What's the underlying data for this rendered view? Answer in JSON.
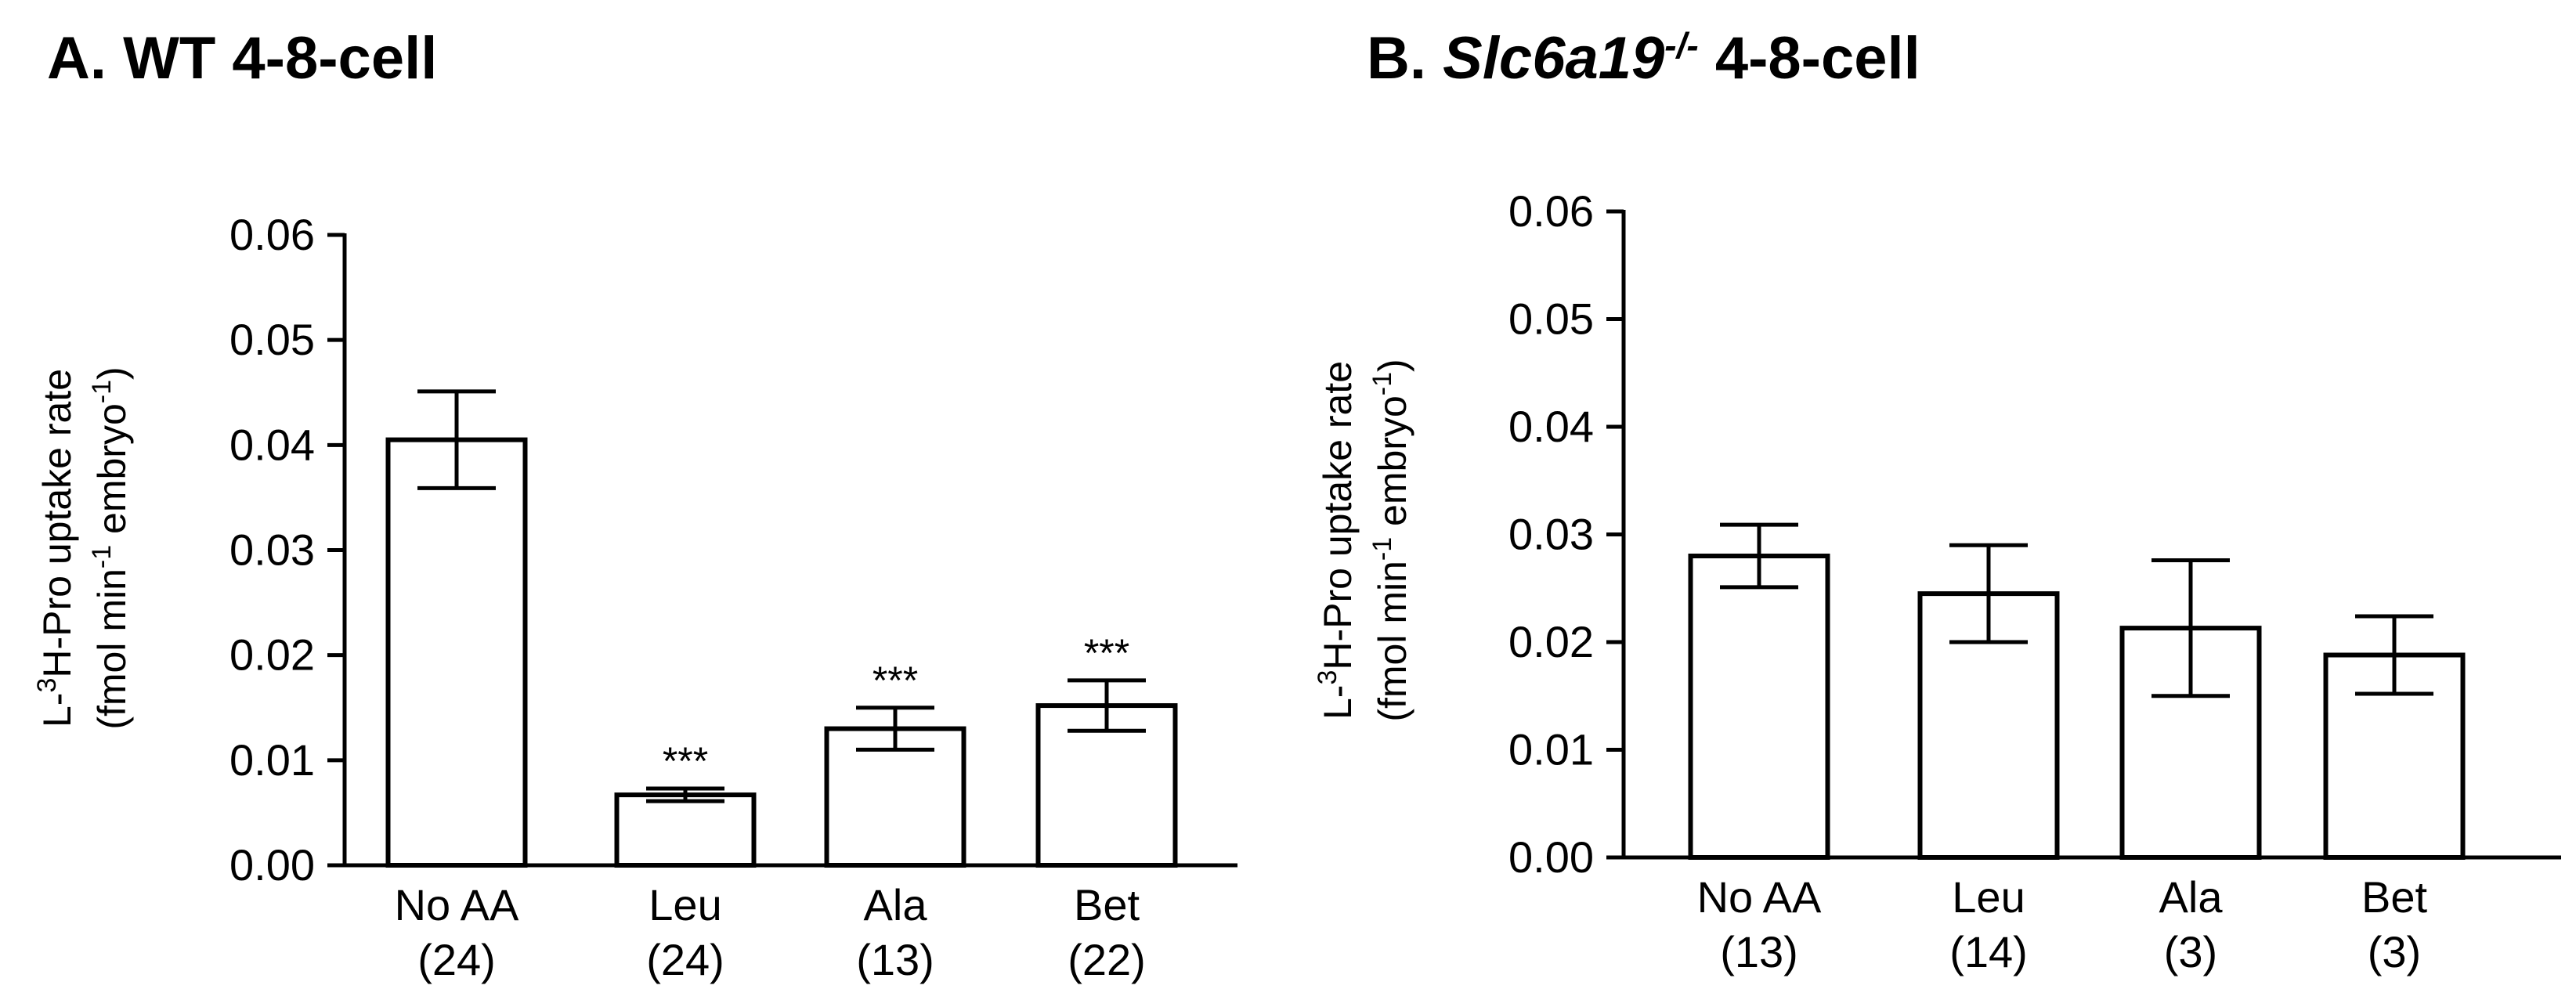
{
  "chart_data": [
    {
      "type": "bar",
      "panel": "A.",
      "title": "WT 4-8-cell",
      "title_italic": "",
      "title_sup": "",
      "ylabel_line1_pre": "L-",
      "ylabel_line1_sup": "3",
      "ylabel_line1_post": "H-Pro uptake rate",
      "ylabel_line2_pre": "(fmol min",
      "ylabel_line2_sup1": "-1",
      "ylabel_line2_mid": " embryo",
      "ylabel_line2_sup2": "-1",
      "ylabel_line2_post": ")",
      "ylim": [
        0,
        0.06
      ],
      "yticks": [
        "0.00",
        "0.01",
        "0.02",
        "0.03",
        "0.04",
        "0.05",
        "0.06"
      ],
      "categories": [
        "No AA",
        "Leu",
        "Ala",
        "Bet"
      ],
      "n": [
        "(24)",
        "(24)",
        "(13)",
        "(22)"
      ],
      "values": [
        0.0405,
        0.0067,
        0.013,
        0.0152
      ],
      "errors": [
        0.0046,
        0.0006,
        0.002,
        0.0024
      ],
      "significance": [
        "",
        "***",
        "***",
        "***"
      ]
    },
    {
      "type": "bar",
      "panel": "B.",
      "title": " 4-8-cell",
      "title_italic": "Slc6a19",
      "title_sup": "-/-",
      "ylabel_line1_pre": "L-",
      "ylabel_line1_sup": "3",
      "ylabel_line1_post": "H-Pro uptake rate",
      "ylabel_line2_pre": "(fmol min",
      "ylabel_line2_sup1": "-1",
      "ylabel_line2_mid": " embryo",
      "ylabel_line2_sup2": "-1",
      "ylabel_line2_post": ")",
      "ylim": [
        0,
        0.06
      ],
      "yticks": [
        "0.00",
        "0.01",
        "0.02",
        "0.03",
        "0.04",
        "0.05",
        "0.06"
      ],
      "categories": [
        "No AA",
        "Leu",
        "Ala",
        "Bet"
      ],
      "n": [
        "(13)",
        "(14)",
        "(3)",
        "(3)"
      ],
      "values": [
        0.028,
        0.0245,
        0.0213,
        0.0188
      ],
      "errors": [
        0.0029,
        0.0045,
        0.0063,
        0.0036
      ],
      "significance": [
        "",
        "",
        "",
        ""
      ]
    }
  ]
}
